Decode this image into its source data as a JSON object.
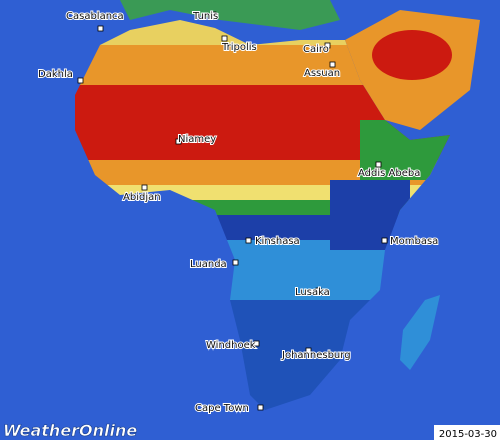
{
  "map": {
    "cities": [
      "Casablanca",
      "Tunis",
      "Tripolis",
      "Cairo",
      "Dakhla",
      "Assuan",
      "Niamey",
      "Addis Abeba",
      "Abidjan",
      "Kinshasa",
      "Mombasa",
      "Luanda",
      "Lusaka",
      "Windhoek",
      "Johannesburg",
      "Cape Town"
    ],
    "date": "2015-03-30",
    "logo": "WeatherOnline"
  }
}
